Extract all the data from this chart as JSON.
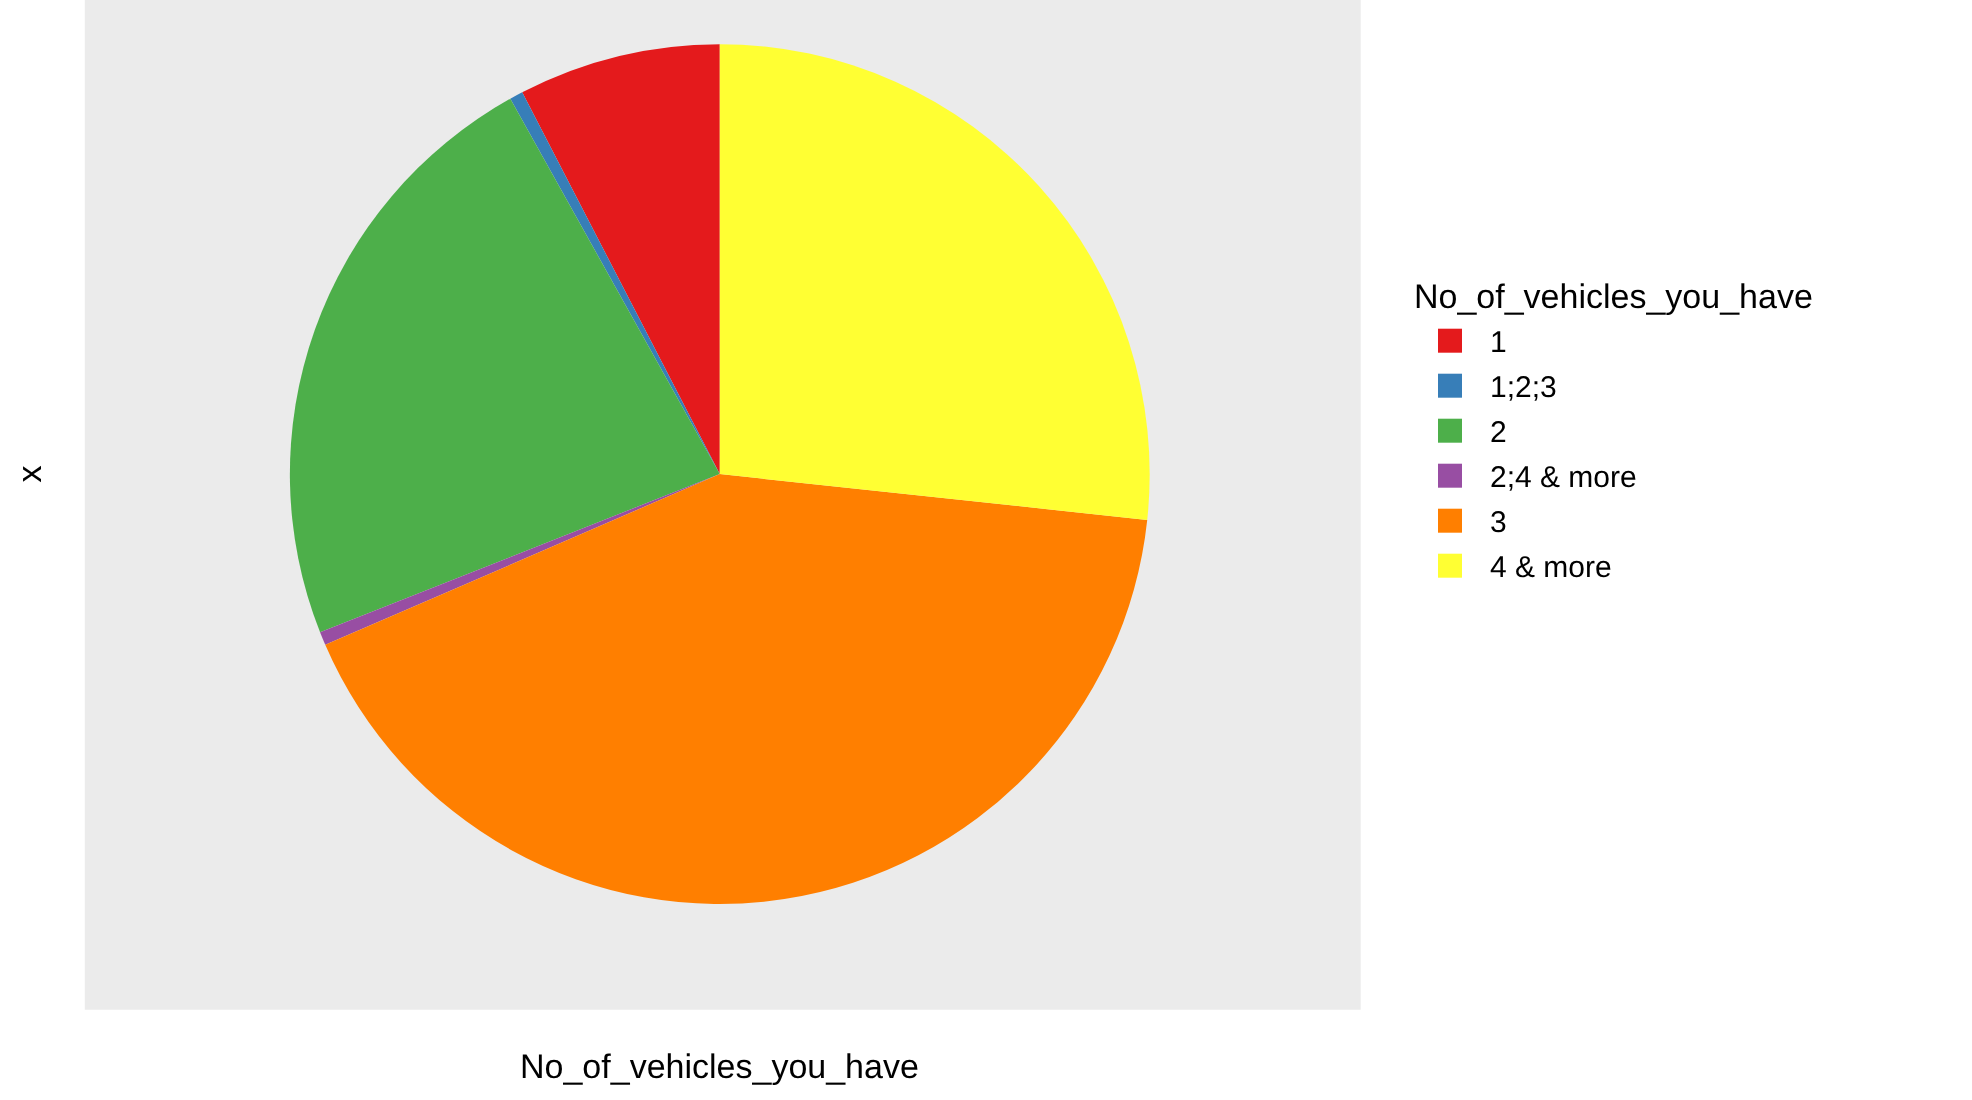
{
  "chart_data": {
    "type": "pie",
    "xlabel": "No_of_vehicles_you_have",
    "ylabel": "x",
    "legend_title": "No_of_vehicles_you_have",
    "legend": "right",
    "categories": [
      "1",
      "1;2;3",
      "2",
      "2;4 & more",
      "3",
      "4 & more"
    ],
    "values": [
      7.6,
      0.5,
      22.9,
      0.5,
      41.8,
      26.7
    ],
    "colors": [
      "#e41a1c",
      "#377eb8",
      "#4daf4a",
      "#984ea3",
      "#ff7f00",
      "#ffff33"
    ]
  }
}
